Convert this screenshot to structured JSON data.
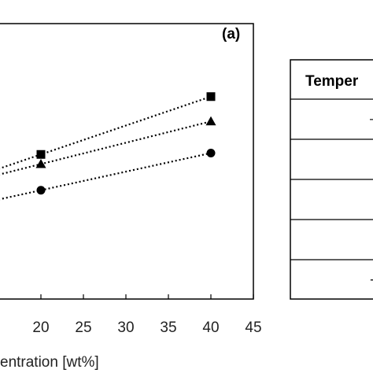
{
  "chart_data": {
    "type": "scatter",
    "panel_label": "(a)",
    "xlabel": "entration [wt%]",
    "ylabel": "",
    "xlim": [
      15,
      45
    ],
    "ylim": [
      0,
      100
    ],
    "x_ticks": [
      20,
      25,
      30,
      35,
      40,
      45
    ],
    "x_tick_labels": [
      "20",
      "25",
      "30",
      "35",
      "40",
      "45"
    ],
    "grid": false,
    "series": [
      {
        "marker": "square",
        "color": "#000000",
        "x": [
          20,
          40
        ],
        "y": [
          52.5,
          73.5
        ]
      },
      {
        "marker": "triangle",
        "color": "#000000",
        "x": [
          20,
          40
        ],
        "y": [
          49,
          64.5
        ]
      },
      {
        "marker": "circle",
        "color": "#000000",
        "x": [
          20,
          40
        ],
        "y": [
          39.5,
          53
        ]
      }
    ],
    "trendline_style": "dotted",
    "left_extension_x": 15
  },
  "legend_table": {
    "header": "Temper",
    "row_symbols": [
      "–",
      "",
      "",
      "",
      "-"
    ]
  }
}
